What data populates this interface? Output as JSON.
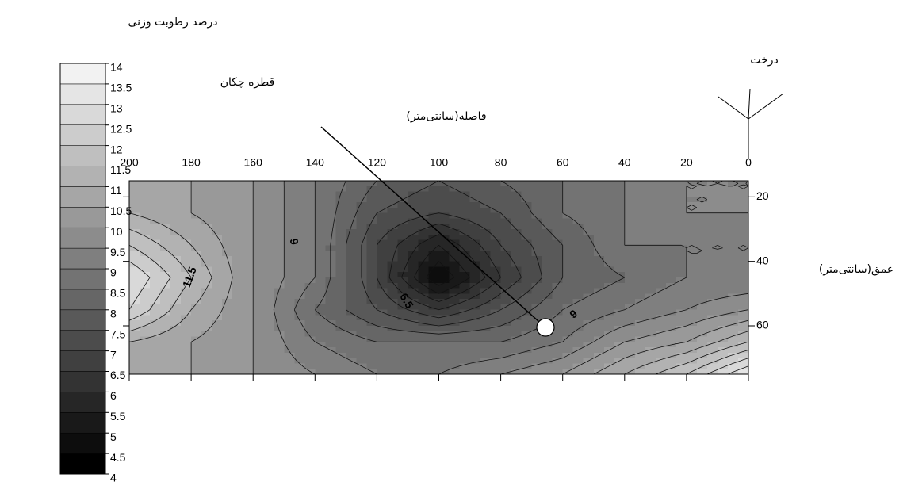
{
  "chart_data": {
    "type": "contour",
    "title": "درصد رطوبت وزنی",
    "tree_label": "درخت",
    "emitter_label": "قطره چکان",
    "xlabel": "فاصله(سانتی‌متر)",
    "ylabel": "عمق(سانتی‌متر)",
    "x": [
      200,
      180,
      160,
      140,
      120,
      100,
      80,
      60,
      40,
      20,
      0
    ],
    "y": [
      15,
      25,
      35,
      45,
      55,
      65,
      75
    ],
    "z": [
      [
        10.5,
        10.5,
        10,
        9,
        8,
        7.5,
        8,
        8.5,
        9,
        9.5,
        9.5
      ],
      [
        11,
        10.5,
        10,
        9,
        7.5,
        7,
        7.5,
        8.5,
        9,
        9.5,
        9.5
      ],
      [
        12,
        11,
        10,
        9,
        7,
        5.5,
        7,
        8,
        9,
        9,
        9
      ],
      [
        13,
        11.5,
        10,
        9,
        7,
        4.5,
        6.5,
        8,
        8.5,
        9,
        9
      ],
      [
        12.5,
        11,
        10,
        8.5,
        7.5,
        6.5,
        7.5,
        8.5,
        9,
        9.5,
        10
      ],
      [
        11,
        10.5,
        10,
        9,
        8.5,
        8.5,
        8.5,
        9,
        10,
        10.5,
        11.5
      ],
      [
        10.5,
        10.5,
        10,
        9.5,
        9,
        9,
        9.5,
        10,
        11,
        12,
        13.5
      ]
    ],
    "xlim": [
      200,
      0
    ],
    "ylim": [
      15,
      75
    ],
    "xticks": [
      200,
      180,
      160,
      140,
      120,
      100,
      80,
      60,
      40,
      20,
      0
    ],
    "yticks": [
      20,
      40,
      60
    ],
    "colormap": "gray",
    "zlim": [
      4,
      14
    ],
    "colorbar_ticks": [
      4,
      4.5,
      5,
      5.5,
      6,
      6.5,
      7,
      7.5,
      8,
      8.5,
      9,
      9.5,
      10,
      10.5,
      11,
      11.5,
      12,
      12.5,
      13,
      13.5,
      14
    ],
    "contour_labels": [
      9,
      11.5,
      6.5,
      9
    ]
  }
}
